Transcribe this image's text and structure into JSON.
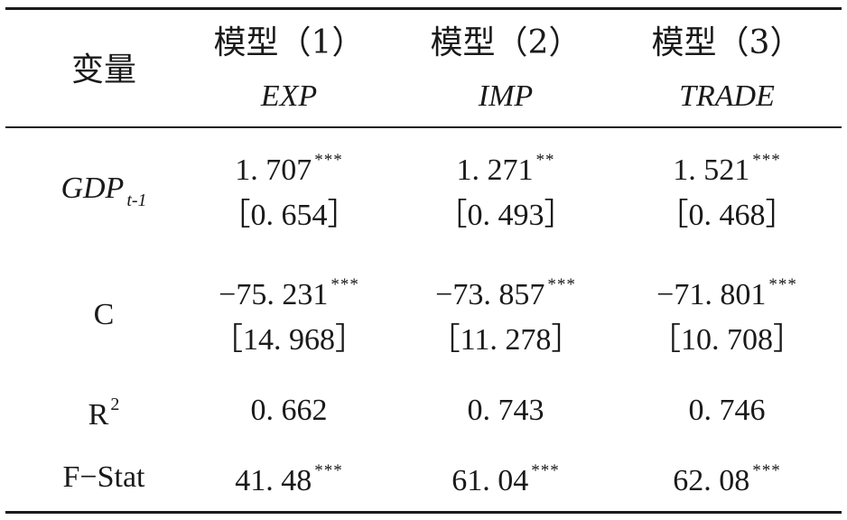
{
  "header": {
    "variable": "变量",
    "models": [
      {
        "label": "模型（1）",
        "dep": "EXP"
      },
      {
        "label": "模型（2）",
        "dep": "IMP"
      },
      {
        "label": "模型（3）",
        "dep": "TRADE"
      }
    ]
  },
  "rows": {
    "gdp": {
      "label": "GDP",
      "subscript": "t-1",
      "values": [
        {
          "coef": "1. 707",
          "stars": "***",
          "se": "［0. 654］"
        },
        {
          "coef": "1. 271",
          "stars": "**",
          "se": "［0. 493］"
        },
        {
          "coef": "1. 521",
          "stars": "***",
          "se": "［0. 468］"
        }
      ]
    },
    "c": {
      "label": "C",
      "values": [
        {
          "coef": "−75. 231",
          "stars": "***",
          "se": "［14. 968］"
        },
        {
          "coef": "−73. 857",
          "stars": "***",
          "se": "［11. 278］"
        },
        {
          "coef": "−71. 801",
          "stars": "***",
          "se": "［10. 708］"
        }
      ]
    },
    "r2": {
      "label": "R",
      "superscript": "2",
      "values": [
        "0. 662",
        "0. 743",
        "0. 746"
      ]
    },
    "fstat": {
      "label": "F−Stat",
      "values": [
        {
          "value": "41. 48",
          "stars": "***"
        },
        {
          "value": "61. 04",
          "stars": "***"
        },
        {
          "value": "62. 08",
          "stars": "***"
        }
      ]
    }
  }
}
